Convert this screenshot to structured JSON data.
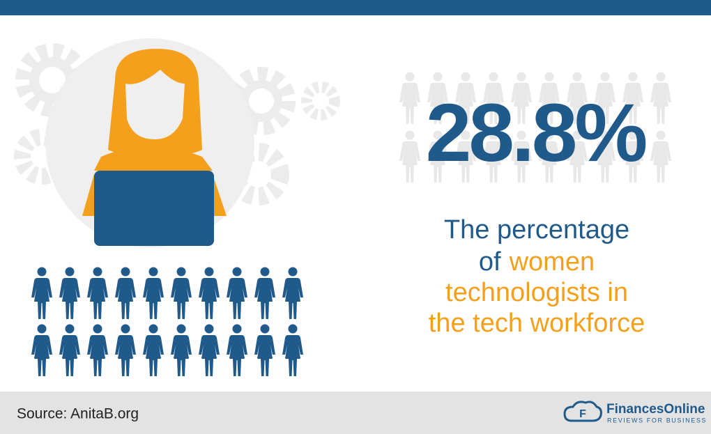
{
  "statistic": {
    "value": 28.8,
    "label": "28.8%"
  },
  "description": {
    "lines": [
      [
        {
          "text": "The percentage",
          "accent": false
        }
      ],
      [
        {
          "text": "of",
          "accent": false
        },
        {
          "text": "women",
          "accent": true
        }
      ],
      [
        {
          "text": "technologists in",
          "accent": true
        }
      ],
      [
        {
          "text": "the tech workforce",
          "accent": true
        }
      ]
    ]
  },
  "colors": {
    "primary": "#1f5a8a",
    "accent": "#f5a01d"
  },
  "footer": {
    "source": "Source: AnitaB.org",
    "brand": "FinancesOnline",
    "tagline": "REVIEWS FOR BUSINESS"
  }
}
